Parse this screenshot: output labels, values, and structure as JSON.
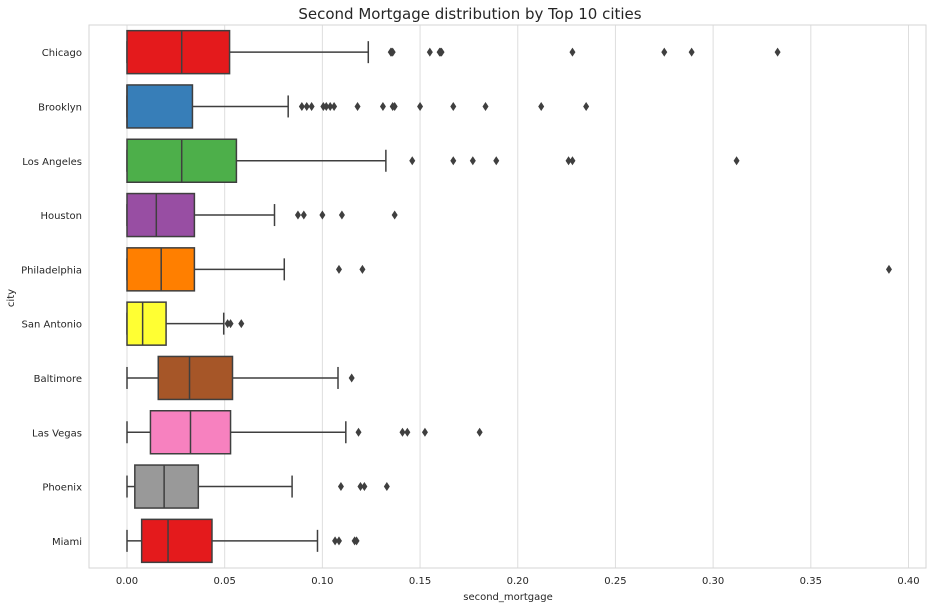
{
  "chart_data": {
    "type": "box",
    "orientation": "horizontal",
    "title": "Second Mortgage distribution by Top 10 cities",
    "xlabel": "second_mortgage",
    "ylabel": "city",
    "xlim": [
      -0.019,
      0.408
    ],
    "xticks": [
      0.0,
      0.05,
      0.1,
      0.15,
      0.2,
      0.25,
      0.3,
      0.35,
      0.4
    ],
    "xtick_labels": [
      "0.00",
      "0.05",
      "0.10",
      "0.15",
      "0.20",
      "0.25",
      "0.30",
      "0.35",
      "0.40"
    ],
    "grid": "vertical",
    "series": [
      {
        "category": "Chicago",
        "color": "#e41a1c",
        "whisker_low": 0.0,
        "q1": 0.0,
        "median": 0.028,
        "q3": 0.0525,
        "whisker_high": 0.1235,
        "outliers": [
          0.135,
          0.1355,
          0.136,
          0.155,
          0.16,
          0.1605,
          0.161,
          0.228,
          0.275,
          0.289,
          0.333
        ]
      },
      {
        "category": "Brooklyn",
        "color": "#377eb8",
        "whisker_low": 0.0,
        "q1": 0.0,
        "median": 0.0,
        "q3": 0.0335,
        "whisker_high": 0.0825,
        "outliers": [
          0.0895,
          0.092,
          0.0945,
          0.1005,
          0.102,
          0.104,
          0.106,
          0.118,
          0.131,
          0.136,
          0.137,
          0.15,
          0.167,
          0.1835,
          0.212,
          0.235
        ]
      },
      {
        "category": "Los Angeles",
        "color": "#4daf4a",
        "whisker_low": 0.0,
        "q1": 0.0,
        "median": 0.028,
        "q3": 0.056,
        "whisker_high": 0.1325,
        "outliers": [
          0.146,
          0.167,
          0.177,
          0.189,
          0.226,
          0.228,
          0.312
        ]
      },
      {
        "category": "Houston",
        "color": "#984ea3",
        "whisker_low": 0.0,
        "q1": 0.0,
        "median": 0.015,
        "q3": 0.0345,
        "whisker_high": 0.0755,
        "outliers": [
          0.0875,
          0.0905,
          0.1,
          0.11,
          0.137
        ]
      },
      {
        "category": "Philadelphia",
        "color": "#ff7f00",
        "whisker_low": 0.0,
        "q1": 0.0,
        "median": 0.0175,
        "q3": 0.0345,
        "whisker_high": 0.0805,
        "outliers": [
          0.1085,
          0.1205,
          0.39
        ]
      },
      {
        "category": "San Antonio",
        "color": "#ffff33",
        "whisker_low": 0.0,
        "q1": 0.0,
        "median": 0.008,
        "q3": 0.02,
        "whisker_high": 0.0495,
        "outliers": [
          0.0515,
          0.053,
          0.0585
        ]
      },
      {
        "category": "Baltimore",
        "color": "#a65628",
        "whisker_low": 0.0,
        "q1": 0.016,
        "median": 0.032,
        "q3": 0.054,
        "whisker_high": 0.108,
        "outliers": [
          0.115
        ]
      },
      {
        "category": "Las Vegas",
        "color": "#f781bf",
        "whisker_low": 0.0,
        "q1": 0.012,
        "median": 0.0325,
        "q3": 0.053,
        "whisker_high": 0.112,
        "outliers": [
          0.1185,
          0.141,
          0.1435,
          0.1525,
          0.1805
        ]
      },
      {
        "category": "Phoenix",
        "color": "#999999",
        "whisker_low": 0.0,
        "q1": 0.004,
        "median": 0.019,
        "q3": 0.0365,
        "whisker_high": 0.0845,
        "outliers": [
          0.1095,
          0.1195,
          0.1215,
          0.133
        ]
      },
      {
        "category": "Miami",
        "color": "#e41a1c",
        "whisker_low": 0.0,
        "q1": 0.0075,
        "median": 0.021,
        "q3": 0.0435,
        "whisker_high": 0.0975,
        "outliers": [
          0.1065,
          0.1085,
          0.1165,
          0.1175
        ]
      }
    ]
  }
}
